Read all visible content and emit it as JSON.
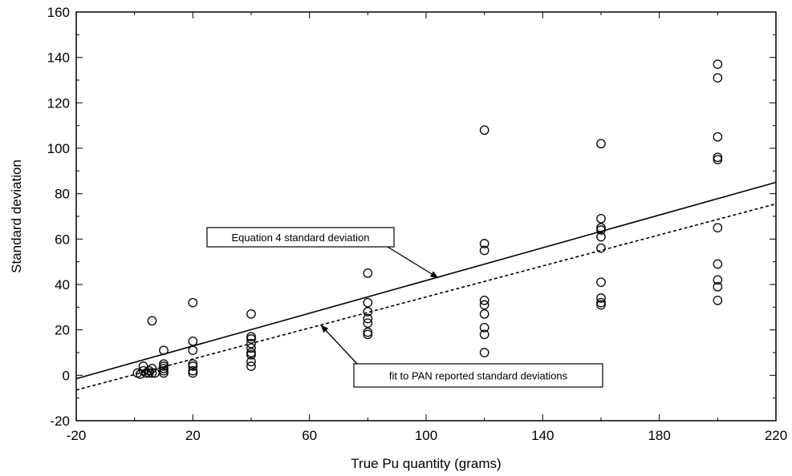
{
  "chart_data": {
    "type": "scatter",
    "xlabel": "True Pu quantity (grams)",
    "ylabel": "Standard deviation",
    "xlim": [
      -20,
      220
    ],
    "ylim": [
      -20,
      160
    ],
    "xticks": [
      -20,
      20,
      60,
      100,
      140,
      180,
      220
    ],
    "yticks": [
      -20,
      0,
      20,
      40,
      60,
      80,
      100,
      120,
      140,
      160
    ],
    "grid": false,
    "legend": "none",
    "series": [
      {
        "marker": "open-circle",
        "points": [
          [
            1,
            1
          ],
          [
            2,
            0.5
          ],
          [
            3,
            4
          ],
          [
            3,
            2
          ],
          [
            4,
            1
          ],
          [
            5,
            2
          ],
          [
            5,
            1
          ],
          [
            6,
            24
          ],
          [
            6,
            3
          ],
          [
            6,
            1
          ],
          [
            7,
            1
          ],
          [
            10,
            11
          ],
          [
            10,
            5
          ],
          [
            10,
            4
          ],
          [
            10,
            3
          ],
          [
            10,
            2
          ],
          [
            10,
            1
          ],
          [
            20,
            32
          ],
          [
            20,
            15
          ],
          [
            20,
            11
          ],
          [
            20,
            5
          ],
          [
            20,
            4
          ],
          [
            20,
            2
          ],
          [
            20,
            1
          ],
          [
            40,
            27
          ],
          [
            40,
            17
          ],
          [
            40,
            16
          ],
          [
            40,
            14
          ],
          [
            40,
            12
          ],
          [
            40,
            10
          ],
          [
            40,
            9
          ],
          [
            40,
            6
          ],
          [
            40,
            4
          ],
          [
            80,
            45
          ],
          [
            80,
            32
          ],
          [
            80,
            28
          ],
          [
            80,
            25
          ],
          [
            80,
            23
          ],
          [
            80,
            19
          ],
          [
            80,
            18
          ],
          [
            120,
            108
          ],
          [
            120,
            58
          ],
          [
            120,
            55
          ],
          [
            120,
            33
          ],
          [
            120,
            31
          ],
          [
            120,
            27
          ],
          [
            120,
            21
          ],
          [
            120,
            18
          ],
          [
            120,
            10
          ],
          [
            160,
            102
          ],
          [
            160,
            69
          ],
          [
            160,
            65
          ],
          [
            160,
            64
          ],
          [
            160,
            61
          ],
          [
            160,
            56
          ],
          [
            160,
            41
          ],
          [
            160,
            34
          ],
          [
            160,
            32
          ],
          [
            160,
            31
          ],
          [
            200,
            137
          ],
          [
            200,
            131
          ],
          [
            200,
            105
          ],
          [
            200,
            96
          ],
          [
            200,
            95
          ],
          [
            200,
            65
          ],
          [
            200,
            49
          ],
          [
            200,
            42
          ],
          [
            200,
            39
          ],
          [
            200,
            33
          ]
        ]
      },
      {
        "style": "solid",
        "line": {
          "x": [
            -20,
            220
          ],
          "y": [
            -1.5,
            85
          ]
        }
      },
      {
        "style": "dashed",
        "line": {
          "x": [
            -20,
            220
          ],
          "y": [
            -6.5,
            75.5
          ]
        }
      }
    ],
    "annotations": [
      {
        "text": "Equation 4 standard deviation",
        "arrow_to": [
          104,
          43
        ],
        "target": "solid"
      },
      {
        "text": "fit to PAN reported standard deviations",
        "arrow_to": [
          64,
          22
        ],
        "target": "dashed"
      }
    ]
  }
}
